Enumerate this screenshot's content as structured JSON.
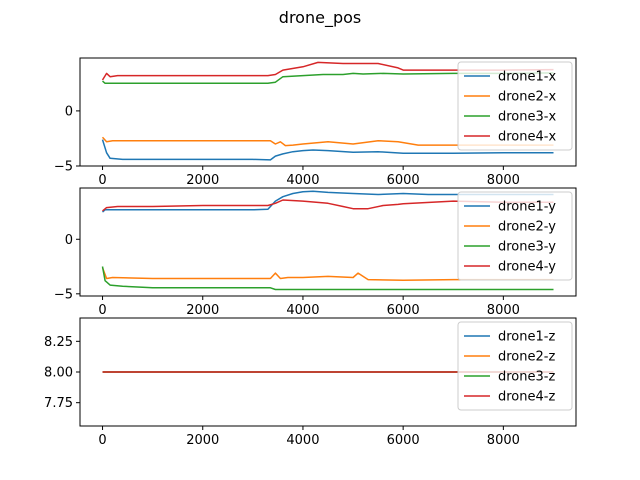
{
  "title": "drone_pos",
  "colors": {
    "drone1": "#1f77b4",
    "drone2": "#ff7f0e",
    "drone3": "#2ca02c",
    "drone4": "#d62728"
  },
  "chart_data": [
    {
      "type": "line",
      "title": "",
      "xlabel": "",
      "ylabel": "",
      "xlim": [
        -450,
        9450
      ],
      "ylim": [
        -5,
        4.8
      ],
      "xticks": [
        0,
        2000,
        4000,
        6000,
        8000
      ],
      "yticks": [
        -5,
        0
      ],
      "legend": "top-right",
      "grid": false,
      "series": [
        {
          "name": "drone1-x",
          "x": [
            0,
            80,
            150,
            400,
            1000,
            2000,
            3000,
            3350,
            3450,
            3600,
            3800,
            4000,
            4200,
            4500,
            5000,
            5500,
            6000,
            7000,
            8000,
            9000
          ],
          "y": [
            -2.6,
            -3.8,
            -4.3,
            -4.4,
            -4.4,
            -4.4,
            -4.4,
            -4.45,
            -4.1,
            -3.9,
            -3.7,
            -3.6,
            -3.55,
            -3.6,
            -3.75,
            -3.7,
            -3.85,
            -3.85,
            -3.8,
            -3.8
          ]
        },
        {
          "name": "drone2-x",
          "x": [
            0,
            80,
            200,
            1000,
            2000,
            3000,
            3350,
            3450,
            3550,
            3650,
            3800,
            4000,
            4500,
            5000,
            5500,
            5900,
            6300,
            7000,
            8000,
            9000
          ],
          "y": [
            -2.4,
            -2.8,
            -2.7,
            -2.7,
            -2.7,
            -2.7,
            -2.7,
            -3.0,
            -2.8,
            -3.15,
            -3.1,
            -3.0,
            -2.8,
            -3.0,
            -2.7,
            -2.8,
            -3.1,
            -3.1,
            -3.1,
            -3.1
          ]
        },
        {
          "name": "drone3-x",
          "x": [
            0,
            50,
            150,
            1000,
            2000,
            3000,
            3300,
            3450,
            3600,
            4000,
            4400,
            4800,
            5000,
            5200,
            5600,
            6000,
            7000,
            8000,
            9000
          ],
          "y": [
            2.7,
            2.5,
            2.5,
            2.5,
            2.5,
            2.5,
            2.5,
            2.6,
            3.1,
            3.2,
            3.3,
            3.3,
            3.4,
            3.35,
            3.4,
            3.35,
            3.4,
            3.4,
            3.45
          ]
        },
        {
          "name": "drone4-x",
          "x": [
            0,
            80,
            150,
            300,
            1000,
            2000,
            3000,
            3300,
            3450,
            3600,
            4000,
            4300,
            4800,
            5500,
            5900,
            6000,
            7000,
            8000,
            9000
          ],
          "y": [
            2.8,
            3.4,
            3.1,
            3.2,
            3.2,
            3.2,
            3.2,
            3.2,
            3.3,
            3.7,
            4.0,
            4.4,
            4.3,
            4.3,
            3.9,
            3.7,
            3.7,
            3.7,
            3.75
          ]
        }
      ]
    },
    {
      "type": "line",
      "title": "",
      "xlabel": "",
      "ylabel": "",
      "xlim": [
        -450,
        9450
      ],
      "ylim": [
        -5.2,
        4.7
      ],
      "xticks": [
        0,
        2000,
        4000,
        6000,
        8000
      ],
      "yticks": [
        -5,
        0
      ],
      "legend": "top-right",
      "grid": false,
      "series": [
        {
          "name": "drone1-y",
          "x": [
            0,
            50,
            150,
            500,
            1000,
            2000,
            3000,
            3300,
            3450,
            3600,
            3800,
            4000,
            4200,
            4500,
            5000,
            5500,
            6000,
            6500,
            7000,
            8000,
            9000
          ],
          "y": [
            2.5,
            2.7,
            2.7,
            2.7,
            2.7,
            2.7,
            2.7,
            2.75,
            3.5,
            3.9,
            4.2,
            4.35,
            4.4,
            4.3,
            4.2,
            4.1,
            4.2,
            4.1,
            4.1,
            4.1,
            4.1
          ]
        },
        {
          "name": "drone2-y",
          "x": [
            0,
            80,
            200,
            1000,
            2000,
            3000,
            3350,
            3450,
            3550,
            3700,
            4000,
            4500,
            5000,
            5100,
            5300,
            6000,
            7000,
            8000,
            9000
          ],
          "y": [
            -2.6,
            -3.6,
            -3.5,
            -3.6,
            -3.6,
            -3.6,
            -3.6,
            -3.1,
            -3.6,
            -3.5,
            -3.5,
            -3.4,
            -3.5,
            -3.1,
            -3.7,
            -3.75,
            -3.7,
            -3.7,
            -3.7
          ]
        },
        {
          "name": "drone3-y",
          "x": [
            0,
            50,
            150,
            400,
            800,
            1000,
            2000,
            3000,
            3350,
            3450,
            3600,
            4000,
            5000,
            6000,
            7000,
            8000,
            9000
          ],
          "y": [
            -2.5,
            -3.8,
            -4.2,
            -4.3,
            -4.4,
            -4.45,
            -4.45,
            -4.45,
            -4.45,
            -4.6,
            -4.6,
            -4.6,
            -4.6,
            -4.6,
            -4.6,
            -4.6,
            -4.6
          ]
        },
        {
          "name": "drone4-y",
          "x": [
            0,
            80,
            300,
            1000,
            2000,
            3000,
            3300,
            3450,
            3600,
            4000,
            4500,
            4800,
            5000,
            5300,
            5600,
            5900,
            6000,
            7000,
            8000,
            9000
          ],
          "y": [
            2.6,
            2.9,
            3.0,
            3.0,
            3.1,
            3.1,
            3.1,
            3.3,
            3.6,
            3.5,
            3.3,
            3.0,
            2.8,
            2.8,
            3.1,
            3.2,
            3.25,
            3.5,
            3.4,
            3.4
          ]
        }
      ]
    },
    {
      "type": "line",
      "title": "",
      "xlabel": "",
      "ylabel": "",
      "xlim": [
        -450,
        9450
      ],
      "ylim": [
        7.56,
        8.44
      ],
      "xticks": [
        0,
        2000,
        4000,
        6000,
        8000
      ],
      "yticks": [
        7.75,
        8.0,
        8.25
      ],
      "ytick_labels": [
        "7.75",
        "8.00",
        "8.25"
      ],
      "legend": "top-right",
      "grid": false,
      "series": [
        {
          "name": "drone1-z",
          "x": [
            0,
            9000
          ],
          "y": [
            8.0,
            8.0
          ]
        },
        {
          "name": "drone2-z",
          "x": [
            0,
            9000
          ],
          "y": [
            8.0,
            8.0
          ]
        },
        {
          "name": "drone3-z",
          "x": [
            0,
            9000
          ],
          "y": [
            8.0,
            8.0
          ]
        },
        {
          "name": "drone4-z",
          "x": [
            0,
            9000
          ],
          "y": [
            8.0,
            8.0
          ]
        }
      ]
    }
  ]
}
